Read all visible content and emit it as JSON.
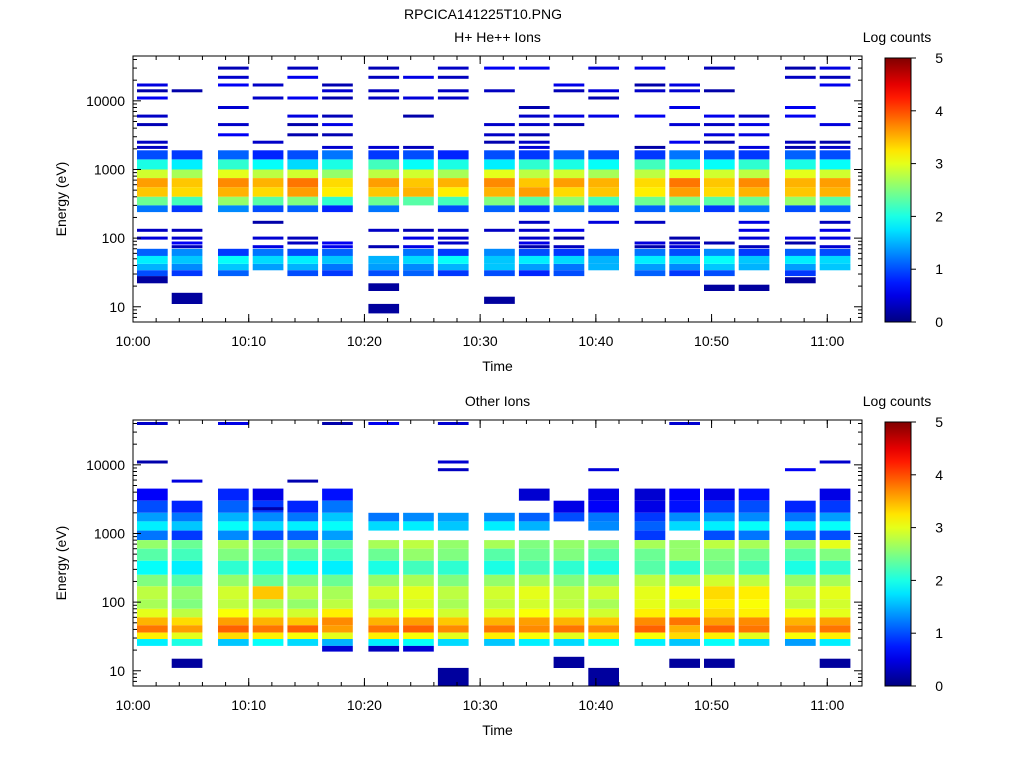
{
  "figure_title": "RPCICA141225T10.PNG",
  "chart_data": [
    {
      "type": "heatmap",
      "title": "H+ He++ Ions",
      "xlabel": "Time",
      "ylabel": "Energy (eV)",
      "colorbar_label": "Log counts",
      "colorbar_ticks": [
        "0",
        "1",
        "2",
        "3",
        "4",
        "5"
      ],
      "colorbar_range": [
        0,
        5
      ],
      "colormap": "jet",
      "x_tick_labels": [
        "10:00",
        "10:10",
        "10:20",
        "10:30",
        "10:40",
        "10:50",
        "11:00"
      ],
      "y_tick_labels": [
        "10",
        "100",
        "1000",
        "10000"
      ],
      "x_range": [
        "10:00",
        "11:03"
      ],
      "y_range_eV": [
        6,
        45000
      ],
      "y_scale": "log",
      "columns": [
        "10:00",
        "10:03",
        "10:07",
        "10:10",
        "10:13",
        "10:16",
        "10:20",
        "10:23",
        "10:26",
        "10:30",
        "10:33",
        "10:36",
        "10:39",
        "10:43",
        "10:46",
        "10:49",
        "10:52",
        "10:56",
        "10:59"
      ],
      "rows": [
        {
          "e": [
            1400,
            1900
          ],
          "v": [
            1.0,
            0.9,
            1.1,
            0.8,
            1.0,
            1.2,
            0.9,
            1.0,
            0.8,
            1.0,
            0.9,
            1.1,
            1.0,
            0.9,
            1.2,
            1.0,
            0.9,
            1.1,
            1.0
          ]
        },
        {
          "e": [
            1000,
            1400
          ],
          "v": [
            2.0,
            1.8,
            2.1,
            1.9,
            1.7,
            2.0,
            2.2,
            1.9,
            2.0,
            1.8,
            2.1,
            2.0,
            1.9,
            2.2,
            2.0,
            1.9,
            2.1,
            2.0,
            1.9
          ]
        },
        {
          "e": [
            750,
            1000
          ],
          "v": [
            2.9,
            2.7,
            3.0,
            2.8,
            2.9,
            2.6,
            2.8,
            2.9,
            2.7,
            3.0,
            2.8,
            2.9,
            2.7,
            2.8,
            3.0,
            2.9,
            2.8,
            3.0,
            2.9
          ]
        },
        {
          "e": [
            550,
            750
          ],
          "v": [
            3.6,
            3.4,
            3.7,
            3.5,
            3.8,
            3.3,
            3.6,
            3.4,
            3.5,
            3.7,
            3.4,
            3.6,
            3.5,
            3.3,
            3.8,
            3.4,
            3.7,
            3.5,
            3.6
          ]
        },
        {
          "e": [
            400,
            550
          ],
          "v": [
            3.4,
            3.3,
            3.5,
            3.3,
            3.6,
            3.2,
            3.4,
            3.5,
            3.2,
            3.5,
            3.6,
            3.3,
            3.4,
            3.2,
            3.6,
            3.3,
            3.5,
            3.4,
            3.5
          ]
        },
        {
          "e": [
            300,
            400
          ],
          "v": [
            2.4,
            2.2,
            2.6,
            2.3,
            2.5,
            2.1,
            2.4,
            2.3,
            2.2,
            2.5,
            2.3,
            2.6,
            2.2,
            2.4,
            2.5,
            2.3,
            2.4,
            2.6,
            2.3
          ]
        },
        {
          "e": [
            240,
            300
          ],
          "v": [
            1.2,
            0.9,
            1.3,
            1.0,
            1.1,
            0.8,
            1.2,
            0.0,
            1.0,
            1.1,
            0.9,
            1.2,
            1.0,
            1.1,
            1.3,
            0.9,
            1.2,
            1.0,
            1.1
          ]
        },
        {
          "e": [
            55,
            70
          ],
          "v": [
            1.1,
            1.3,
            0.9,
            1.2,
            1.0,
            1.1,
            0.0,
            1.2,
            0.9,
            1.3,
            1.0,
            0.9,
            1.1,
            1.2,
            1.0,
            1.3,
            0.9,
            1.1,
            1.0
          ]
        },
        {
          "e": [
            42,
            55
          ],
          "v": [
            1.8,
            1.6,
            1.9,
            1.7,
            1.8,
            1.6,
            1.5,
            1.7,
            1.9,
            1.6,
            1.8,
            1.7,
            1.5,
            1.8,
            1.7,
            1.9,
            1.6,
            1.8,
            1.7
          ]
        },
        {
          "e": [
            34,
            42
          ],
          "v": [
            1.5,
            1.3,
            1.6,
            1.4,
            1.5,
            1.2,
            1.4,
            1.3,
            1.5,
            1.6,
            1.4,
            1.2,
            1.5,
            1.4,
            1.3,
            1.6,
            1.5,
            1.4,
            1.6
          ]
        },
        {
          "e": [
            28,
            34
          ],
          "v": [
            1.0,
            0.9,
            1.1,
            0.0,
            1.0,
            0.9,
            1.0,
            1.1,
            0.9,
            1.0,
            0.8,
            1.0,
            0.0,
            1.1,
            0.9,
            1.0,
            0.0,
            0.9,
            0.0
          ]
        }
      ],
      "sparse_energies_eV": [
        48000,
        30000,
        22000,
        17000,
        14000,
        11000,
        8000,
        6000,
        4500,
        3200,
        2500,
        2100,
        170,
        130,
        100,
        85,
        75
      ],
      "low_marks": [
        {
          "col": "10:00",
          "e": [
            22,
            28
          ]
        },
        {
          "col": "10:03",
          "e": [
            11,
            16
          ]
        },
        {
          "col": "10:20",
          "e": [
            8,
            11
          ]
        },
        {
          "col": "10:20",
          "e": [
            17,
            22
          ]
        },
        {
          "col": "10:30",
          "e": [
            11,
            14
          ]
        },
        {
          "col": "10:49",
          "e": [
            17,
            21
          ]
        },
        {
          "col": "10:52",
          "e": [
            17,
            21
          ]
        },
        {
          "col": "10:56",
          "e": [
            22,
            27
          ]
        }
      ]
    },
    {
      "type": "heatmap",
      "title": "Other Ions",
      "xlabel": "Time",
      "ylabel": "Energy (eV)",
      "colorbar_label": "Log counts",
      "colorbar_ticks": [
        "0",
        "1",
        "2",
        "3",
        "4",
        "5"
      ],
      "colorbar_range": [
        0,
        5
      ],
      "colormap": "jet",
      "x_tick_labels": [
        "10:00",
        "10:10",
        "10:20",
        "10:30",
        "10:40",
        "10:50",
        "11:00"
      ],
      "y_tick_labels": [
        "10",
        "100",
        "1000",
        "10000"
      ],
      "x_range": [
        "10:00",
        "11:03"
      ],
      "y_range_eV": [
        6,
        45000
      ],
      "y_scale": "log",
      "columns": [
        "10:00",
        "10:03",
        "10:07",
        "10:10",
        "10:13",
        "10:16",
        "10:20",
        "10:23",
        "10:26",
        "10:30",
        "10:33",
        "10:36",
        "10:39",
        "10:43",
        "10:46",
        "10:49",
        "10:52",
        "10:56",
        "10:59"
      ],
      "rows": [
        {
          "e": [
            3000,
            4500
          ],
          "v": [
            0.6,
            0.0,
            0.8,
            0.5,
            0.0,
            0.7,
            0.0,
            0.0,
            0.0,
            0.0,
            0.4,
            0.0,
            0.5,
            0.4,
            0.6,
            0.5,
            0.7,
            0.0,
            0.5
          ]
        },
        {
          "e": [
            2000,
            3000
          ],
          "v": [
            1.0,
            0.8,
            1.1,
            0.9,
            0.8,
            1.2,
            0.0,
            0.0,
            0.0,
            0.0,
            0.0,
            0.5,
            0.6,
            0.5,
            0.7,
            0.9,
            1.0,
            0.8,
            0.9
          ]
        },
        {
          "e": [
            1500,
            2000
          ],
          "v": [
            1.4,
            1.2,
            1.5,
            1.3,
            1.2,
            1.6,
            1.2,
            1.3,
            1.4,
            1.3,
            1.1,
            1.0,
            1.2,
            0.9,
            1.3,
            1.4,
            1.3,
            1.2,
            1.4
          ]
        },
        {
          "e": [
            1100,
            1500
          ],
          "v": [
            1.8,
            1.6,
            1.9,
            1.7,
            1.8,
            1.9,
            1.7,
            1.8,
            1.6,
            1.8,
            1.5,
            0.0,
            1.3,
            1.1,
            1.7,
            1.8,
            1.9,
            1.8,
            1.9
          ]
        },
        {
          "e": [
            800,
            1100
          ],
          "v": [
            1.2,
            0.9,
            1.3,
            1.0,
            1.1,
            1.4,
            0.0,
            0.0,
            0.0,
            0.0,
            0.0,
            0.0,
            0.0,
            0.9,
            0.0,
            1.0,
            1.2,
            1.1,
            1.0
          ]
        },
        {
          "e": [
            600,
            800
          ],
          "v": [
            2.6,
            2.4,
            2.7,
            2.5,
            2.6,
            2.4,
            2.7,
            2.8,
            2.6,
            2.7,
            2.5,
            2.6,
            2.5,
            2.7,
            2.6,
            2.8,
            2.7,
            2.6,
            3.0
          ]
        },
        {
          "e": [
            400,
            600
          ],
          "v": [
            2.3,
            2.2,
            2.5,
            2.4,
            2.3,
            2.2,
            2.4,
            2.6,
            2.5,
            2.3,
            2.4,
            2.5,
            2.3,
            2.4,
            2.6,
            2.5,
            2.4,
            2.3,
            2.5
          ]
        },
        {
          "e": [
            250,
            400
          ],
          "v": [
            1.9,
            1.8,
            2.1,
            2.0,
            1.9,
            1.8,
            2.0,
            2.2,
            2.1,
            2.0,
            2.2,
            2.1,
            2.0,
            2.3,
            2.1,
            2.4,
            2.2,
            2.0,
            2.1
          ]
        },
        {
          "e": [
            170,
            250
          ],
          "v": [
            2.5,
            2.3,
            2.6,
            2.4,
            2.5,
            2.4,
            2.6,
            2.7,
            2.5,
            2.6,
            2.7,
            2.5,
            2.6,
            2.8,
            2.7,
            2.9,
            2.8,
            2.6,
            2.7
          ]
        },
        {
          "e": [
            110,
            170
          ],
          "v": [
            2.8,
            2.6,
            2.9,
            3.4,
            2.8,
            2.7,
            2.9,
            3.0,
            2.8,
            2.9,
            3.0,
            2.8,
            2.9,
            3.0,
            3.1,
            3.3,
            3.2,
            2.9,
            3.0
          ]
        },
        {
          "e": [
            80,
            110
          ],
          "v": [
            2.7,
            2.5,
            2.8,
            2.7,
            2.6,
            2.8,
            2.7,
            2.9,
            2.7,
            2.8,
            2.9,
            2.8,
            2.7,
            3.0,
            2.9,
            3.2,
            3.1,
            2.8,
            2.9
          ]
        },
        {
          "e": [
            60,
            80
          ],
          "v": [
            3.0,
            2.8,
            3.1,
            3.0,
            2.9,
            3.2,
            3.0,
            3.1,
            2.9,
            3.0,
            3.1,
            3.0,
            2.9,
            3.2,
            3.2,
            3.3,
            3.2,
            3.1,
            3.0
          ]
        },
        {
          "e": [
            46,
            60
          ],
          "v": [
            3.5,
            3.3,
            3.6,
            3.5,
            3.4,
            3.7,
            3.5,
            3.6,
            3.4,
            3.5,
            3.6,
            3.5,
            3.4,
            3.7,
            3.8,
            3.6,
            3.7,
            3.5,
            3.6
          ]
        },
        {
          "e": [
            36,
            46
          ],
          "v": [
            3.8,
            3.6,
            3.9,
            3.8,
            3.9,
            3.6,
            3.8,
            3.9,
            3.7,
            3.8,
            3.7,
            3.8,
            3.7,
            3.9,
            3.5,
            3.9,
            3.8,
            3.7,
            3.8
          ]
        },
        {
          "e": [
            29,
            36
          ],
          "v": [
            3.2,
            3.0,
            3.3,
            3.2,
            3.1,
            3.0,
            3.2,
            3.1,
            3.0,
            3.2,
            3.1,
            3.0,
            3.2,
            3.1,
            3.3,
            3.2,
            3.0,
            3.1,
            3.2
          ]
        },
        {
          "e": [
            23,
            29
          ],
          "v": [
            1.8,
            2.0,
            1.6,
            1.9,
            1.7,
            1.5,
            1.8,
            1.9,
            1.7,
            1.6,
            1.8,
            1.7,
            1.9,
            1.8,
            1.6,
            1.9,
            1.7,
            1.4,
            1.8
          ]
        },
        {
          "e": [
            19,
            23
          ],
          "v": [
            0.0,
            0.0,
            0.0,
            0.0,
            0.0,
            0.4,
            0.3,
            0.4,
            0.0,
            0.0,
            0.0,
            0.0,
            0.0,
            0.0,
            0.0,
            0.0,
            0.0,
            0.0,
            0.0
          ]
        }
      ],
      "sparse_energies_eV": [
        40000,
        11000,
        8500,
        5800,
        2300
      ],
      "low_marks": [
        {
          "col": "10:03",
          "e": [
            11,
            15
          ]
        },
        {
          "col": "10:26",
          "e": [
            6,
            11
          ]
        },
        {
          "col": "10:36",
          "e": [
            11,
            16
          ]
        },
        {
          "col": "10:39",
          "e": [
            6,
            11
          ]
        },
        {
          "col": "10:46",
          "e": [
            11,
            15
          ]
        },
        {
          "col": "10:49",
          "e": [
            11,
            15
          ]
        },
        {
          "col": "10:59",
          "e": [
            11,
            15
          ]
        }
      ]
    }
  ]
}
